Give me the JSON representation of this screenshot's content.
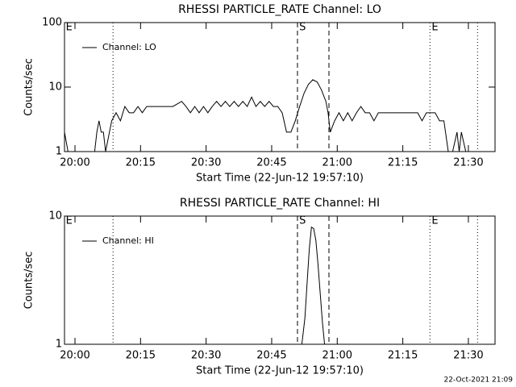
{
  "chart_data": [
    {
      "type": "line",
      "title": "RHESSI PARTICLE_RATE Channel: LO",
      "xlabel": "Start Time (22-Jun-12 19:57:10)",
      "ylabel": "Counts/sec",
      "log_y": true,
      "legend": "upper left",
      "xlim": [
        1197.6,
        1296.1
      ],
      "ylim": [
        1,
        100
      ],
      "xticks": [
        {
          "value": 1200,
          "label": "20:00"
        },
        {
          "value": 1215,
          "label": "20:15"
        },
        {
          "value": 1230,
          "label": "20:30"
        },
        {
          "value": 1245,
          "label": "20:45"
        },
        {
          "value": 1260,
          "label": "21:00"
        },
        {
          "value": 1275,
          "label": "21:15"
        },
        {
          "value": 1290,
          "label": "21:30"
        }
      ],
      "yticks": [
        1,
        10,
        100
      ],
      "vlines": [
        {
          "x": 1208.7,
          "style": "dotted"
        },
        {
          "x": 1250.9,
          "style": "dashed"
        },
        {
          "x": 1258.1,
          "style": "dashed"
        },
        {
          "x": 1281.2,
          "style": "dotted"
        },
        {
          "x": 1292.1,
          "style": "dotted"
        }
      ],
      "annotations": [
        {
          "x": 1197.9,
          "label": "E"
        },
        {
          "x": 1251.3,
          "label": "S"
        },
        {
          "x": 1281.6,
          "label": "E"
        }
      ],
      "x": [
        1197.6,
        1198.4,
        1204.5,
        1205,
        1205.5,
        1206,
        1206.5,
        1207,
        1208.4,
        1209.4,
        1210.4,
        1211.4,
        1212.4,
        1213.4,
        1214.4,
        1215.4,
        1216.4,
        1218.4,
        1220.4,
        1222.4,
        1224.4,
        1225.4,
        1226.4,
        1227.4,
        1228.4,
        1229.4,
        1230.4,
        1231.4,
        1232.4,
        1233.4,
        1234.4,
        1235.4,
        1236.4,
        1237.4,
        1238.4,
        1239.4,
        1240.4,
        1241.4,
        1242.4,
        1243.4,
        1244.4,
        1245.4,
        1246.4,
        1247.4,
        1248.4,
        1249.4,
        1250.4,
        1251.4,
        1252.4,
        1253.4,
        1254.4,
        1255.4,
        1256.4,
        1257.4,
        1257.9,
        1258.4,
        1259.4,
        1260.4,
        1261.4,
        1262.4,
        1263.4,
        1264.4,
        1265.4,
        1266.4,
        1267.4,
        1268.4,
        1269.4,
        1270.4,
        1272.4,
        1274.4,
        1276.4,
        1278.4,
        1279.4,
        1280.4,
        1281.4,
        1282.4,
        1283.4,
        1284.4,
        1285.4,
        1286.4,
        1287.4,
        1287.9,
        1288.4,
        1289.4,
        1290.4
      ],
      "series": [
        {
          "name": "Channel: LO",
          "color": "#000000",
          "values": [
            2,
            1,
            1,
            2,
            3,
            2,
            2,
            1,
            3,
            4,
            3,
            5,
            4,
            4,
            5,
            4,
            5,
            5,
            5,
            5,
            6,
            5,
            4,
            5,
            4,
            5,
            4,
            5,
            6,
            5,
            6,
            5,
            6,
            5,
            6,
            5,
            7,
            5,
            6,
            5,
            6,
            5,
            5,
            4,
            2,
            2,
            3,
            5,
            8,
            11,
            13,
            12,
            9,
            6,
            4,
            2,
            3,
            4,
            3,
            4,
            3,
            4,
            5,
            4,
            4,
            3,
            4,
            4,
            4,
            4,
            4,
            4,
            3,
            4,
            4,
            4,
            3,
            3,
            1,
            1,
            2,
            1,
            2,
            1,
            1
          ]
        }
      ]
    },
    {
      "type": "line",
      "title": "RHESSI PARTICLE_RATE Channel: HI",
      "xlabel": "Start Time (22-Jun-12 19:57:10)",
      "ylabel": "Counts/sec",
      "log_y": true,
      "legend": "upper left",
      "xlim": [
        1197.6,
        1296.1
      ],
      "ylim": [
        1,
        10
      ],
      "xticks": [
        {
          "value": 1200,
          "label": "20:00"
        },
        {
          "value": 1215,
          "label": "20:15"
        },
        {
          "value": 1230,
          "label": "20:30"
        },
        {
          "value": 1245,
          "label": "20:45"
        },
        {
          "value": 1260,
          "label": "21:00"
        },
        {
          "value": 1275,
          "label": "21:15"
        },
        {
          "value": 1290,
          "label": "21:30"
        }
      ],
      "yticks": [
        1,
        10
      ],
      "vlines": [
        {
          "x": 1208.7,
          "style": "dotted"
        },
        {
          "x": 1250.9,
          "style": "dashed"
        },
        {
          "x": 1258.1,
          "style": "dashed"
        },
        {
          "x": 1281.2,
          "style": "dotted"
        },
        {
          "x": 1292.1,
          "style": "dotted"
        }
      ],
      "annotations": [
        {
          "x": 1197.9,
          "label": "E"
        },
        {
          "x": 1251.3,
          "label": "S"
        },
        {
          "x": 1281.6,
          "label": "E"
        }
      ],
      "x": [
        1251.9,
        1252.6,
        1253.1,
        1253.6,
        1254.1,
        1254.6,
        1255.1,
        1255.6,
        1256.1,
        1256.6,
        1257.1
      ],
      "series": [
        {
          "name": "Channel: HI",
          "color": "#000000",
          "values": [
            1,
            1.6,
            3,
            5.5,
            8.2,
            8,
            6.5,
            4.2,
            2.5,
            1.5,
            1
          ]
        }
      ]
    }
  ],
  "footer": "22-Oct-2021 21:09"
}
